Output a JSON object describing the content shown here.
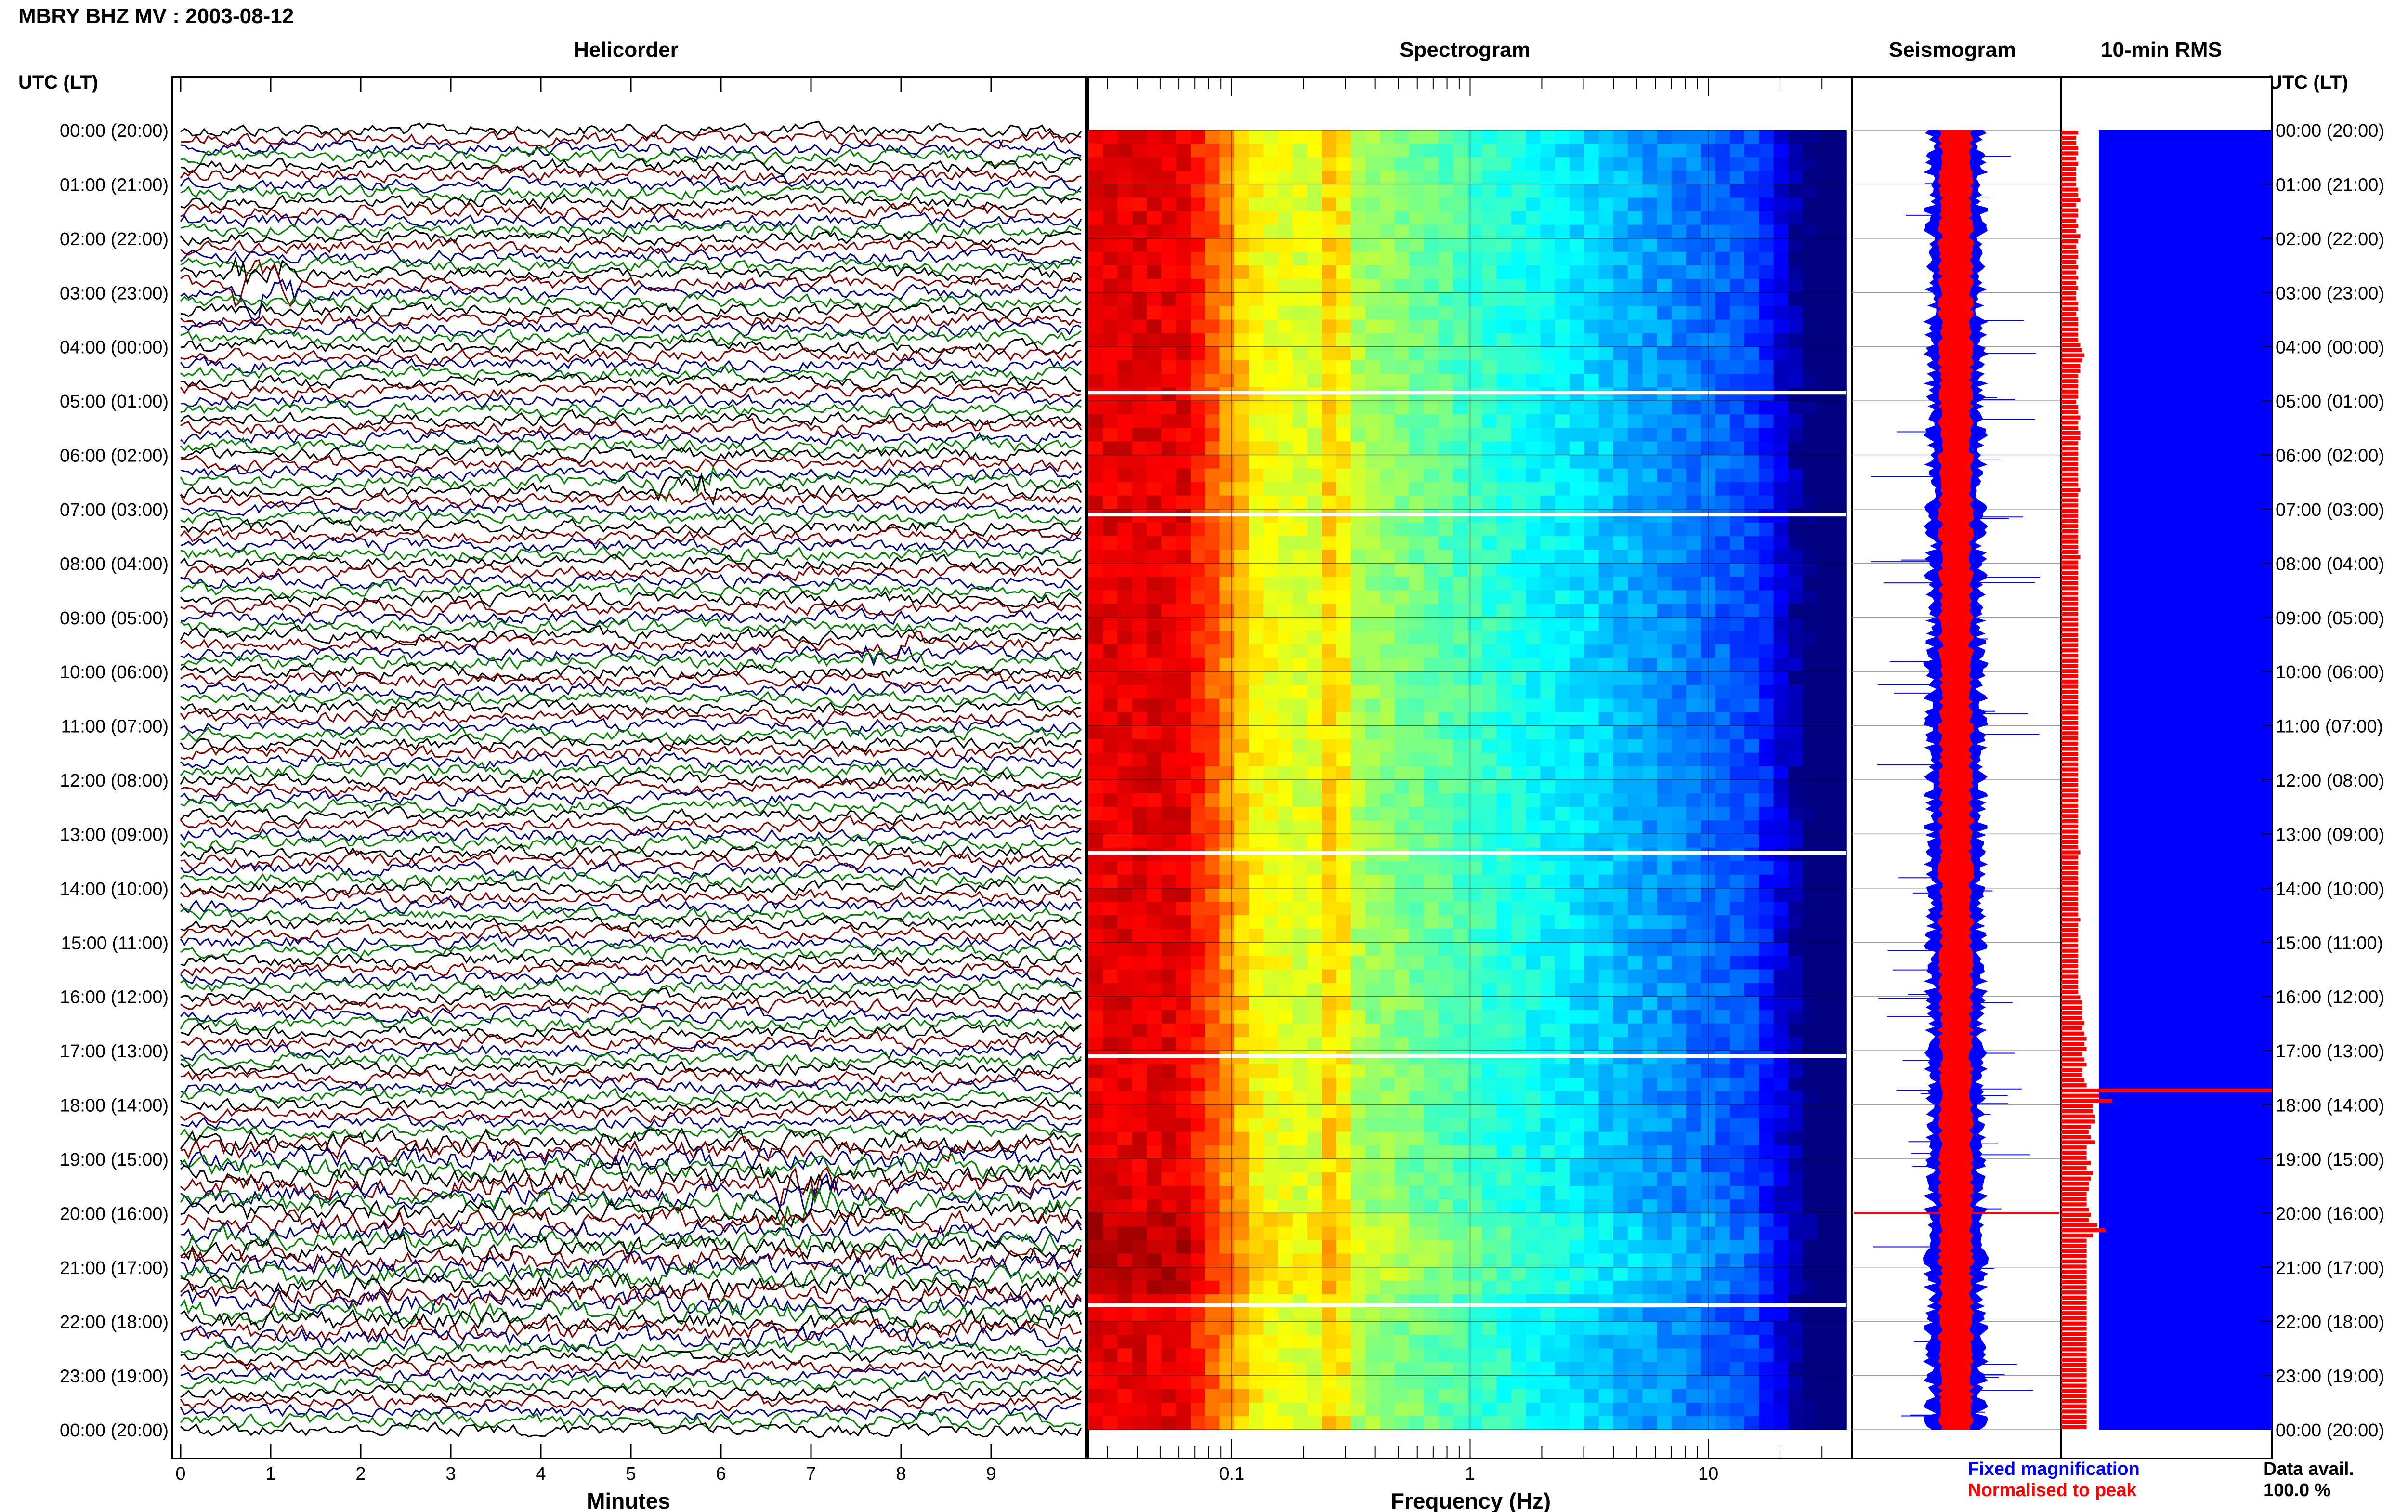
{
  "header": {
    "title": "MBRY BHZ MV : 2003-08-12"
  },
  "panels": {
    "helicorder": "Helicorder",
    "spectrogram": "Spectrogram",
    "seismogram": "Seismogram",
    "rms": "10-min RMS"
  },
  "axes": {
    "time_label_left": "UTC (LT)",
    "time_label_right": "UTC (LT)",
    "minutes_label": "Minutes",
    "frequency_label": "Frequency (Hz)"
  },
  "legend": {
    "fixed": "Fixed magnification",
    "normalised": "Normalised to peak",
    "fixed_color": "#0000ff",
    "normalised_color": "#ff0000"
  },
  "data_avail": {
    "label": "Data avail.",
    "value": "100.0 %"
  },
  "colors": {
    "black": "#000000",
    "maroon": "#7f0000",
    "navy": "#00007f",
    "green": "#007f00",
    "rms_bg": "#0000ff",
    "rms_bar": "#ff0000"
  },
  "chart_data": {
    "type": "heatmap",
    "time_labels": [
      "00:00 (20:00)",
      "01:00 (21:00)",
      "02:00 (22:00)",
      "03:00 (23:00)",
      "04:00 (00:00)",
      "05:00 (01:00)",
      "06:00 (02:00)",
      "07:00 (03:00)",
      "08:00 (04:00)",
      "09:00 (05:00)",
      "10:00 (06:00)",
      "11:00 (07:00)",
      "12:00 (08:00)",
      "13:00 (09:00)",
      "14:00 (10:00)",
      "15:00 (11:00)",
      "16:00 (12:00)",
      "17:00 (13:00)",
      "18:00 (14:00)",
      "19:00 (15:00)",
      "20:00 (16:00)",
      "21:00 (17:00)",
      "22:00 (18:00)",
      "23:00 (19:00)",
      "00:00 (20:00)"
    ],
    "helicorder": {
      "minute_ticks": [
        "0",
        "1",
        "2",
        "3",
        "4",
        "5",
        "6",
        "7",
        "8",
        "9"
      ],
      "xlim": [
        0,
        10
      ],
      "lines_per_hour": 6,
      "trace_colors": [
        "#000000",
        "#7f0000",
        "#00007f",
        "#007f00"
      ],
      "events": [
        {
          "hour": 2.85,
          "minute": 0.95,
          "amp": 3,
          "color": "#00007f"
        },
        {
          "hour": 6.55,
          "minute": 5.6,
          "amp": 3,
          "color": "#000000"
        },
        {
          "hour": 9.7,
          "minute": 7.9,
          "amp": 2,
          "color": "#007f00"
        },
        {
          "hour": 19.6,
          "minute": 3.6,
          "amp": 2,
          "color": "#007f00"
        },
        {
          "hour": 19.7,
          "minute": 7.0,
          "amp": 3,
          "color": "#7f0000"
        }
      ]
    },
    "spectrogram": {
      "xscale": "log",
      "xlim": [
        0.025,
        40
      ],
      "tick_labels": [
        "0.1",
        "1",
        "10"
      ],
      "colormap": "jet",
      "gap_hours": [
        4.85,
        7.1,
        13.35,
        17.1,
        21.7
      ]
    },
    "seismogram": {
      "series": [
        "Fixed magnification",
        "Normalised to peak"
      ]
    },
    "rms": {
      "values": [
        0.08,
        0.07,
        0.07,
        0.08,
        0.08,
        0.07,
        0.08,
        0.07,
        0.07,
        0.07,
        0.07,
        0.08,
        0.08,
        0.09,
        0.07,
        0.08,
        0.08,
        0.07,
        0.08,
        0.07,
        0.09,
        0.08,
        0.07,
        0.08,
        0.08,
        0.07,
        0.08,
        0.07,
        0.08,
        0.07,
        0.08,
        0.07,
        0.07,
        0.08,
        0.08,
        0.07,
        0.08,
        0.08,
        0.08,
        0.08,
        0.08,
        0.09,
        0.1,
        0.11,
        0.1,
        0.09,
        0.09,
        0.08,
        0.08,
        0.08,
        0.08,
        0.08,
        0.07,
        0.08,
        0.08,
        0.09,
        0.08,
        0.08,
        0.09,
        0.09,
        0.08,
        0.08,
        0.08,
        0.08,
        0.08,
        0.08,
        0.08,
        0.08,
        0.08,
        0.09,
        0.08,
        0.08,
        0.08,
        0.08,
        0.08,
        0.08,
        0.08,
        0.08,
        0.08,
        0.08,
        0.08,
        0.08,
        0.09,
        0.08,
        0.08,
        0.08,
        0.08,
        0.08,
        0.08,
        0.08,
        0.08,
        0.08,
        0.08,
        0.08,
        0.08,
        0.08,
        0.08,
        0.08,
        0.08,
        0.08,
        0.08,
        0.08,
        0.08,
        0.08,
        0.08,
        0.08,
        0.08,
        0.08,
        0.08,
        0.08,
        0.08,
        0.08,
        0.08,
        0.08,
        0.08,
        0.08,
        0.08,
        0.08,
        0.08,
        0.08,
        0.08,
        0.08,
        0.08,
        0.08,
        0.08,
        0.08,
        0.08,
        0.08,
        0.08,
        0.08,
        0.08,
        0.08,
        0.08,
        0.08,
        0.08,
        0.08,
        0.08,
        0.08,
        0.08,
        0.09,
        0.08,
        0.08,
        0.08,
        0.08,
        0.08,
        0.08,
        0.08,
        0.08,
        0.08,
        0.08,
        0.08,
        0.08,
        0.09,
        0.08,
        0.08,
        0.08,
        0.08,
        0.08,
        0.08,
        0.08,
        0.08,
        0.08,
        0.08,
        0.08,
        0.08,
        0.08,
        0.08,
        0.09,
        0.1,
        0.1,
        0.1,
        0.1,
        0.11,
        0.1,
        0.11,
        0.12,
        0.11,
        0.12,
        0.1,
        0.11,
        0.12,
        0.1,
        0.1,
        0.11,
        0.12,
        1.0,
        0.18,
        0.24,
        0.15,
        0.15,
        0.16,
        0.16,
        0.14,
        0.13,
        0.14,
        0.16,
        0.12,
        0.12,
        0.12,
        0.14,
        0.12,
        0.15,
        0.14,
        0.13,
        0.13,
        0.12,
        0.12,
        0.12,
        0.13,
        0.14,
        0.13,
        0.17,
        0.21,
        0.15,
        0.12,
        0.12,
        0.12,
        0.12,
        0.12,
        0.12,
        0.12,
        0.12,
        0.12,
        0.12,
        0.12,
        0.12,
        0.12,
        0.12,
        0.12,
        0.12,
        0.12,
        0.12,
        0.12,
        0.12,
        0.12,
        0.12,
        0.12,
        0.12,
        0.12,
        0.12,
        0.12,
        0.12,
        0.12,
        0.12,
        0.12,
        0.12,
        0.12,
        0.12,
        0.12,
        0.12,
        0.12
      ]
    }
  }
}
